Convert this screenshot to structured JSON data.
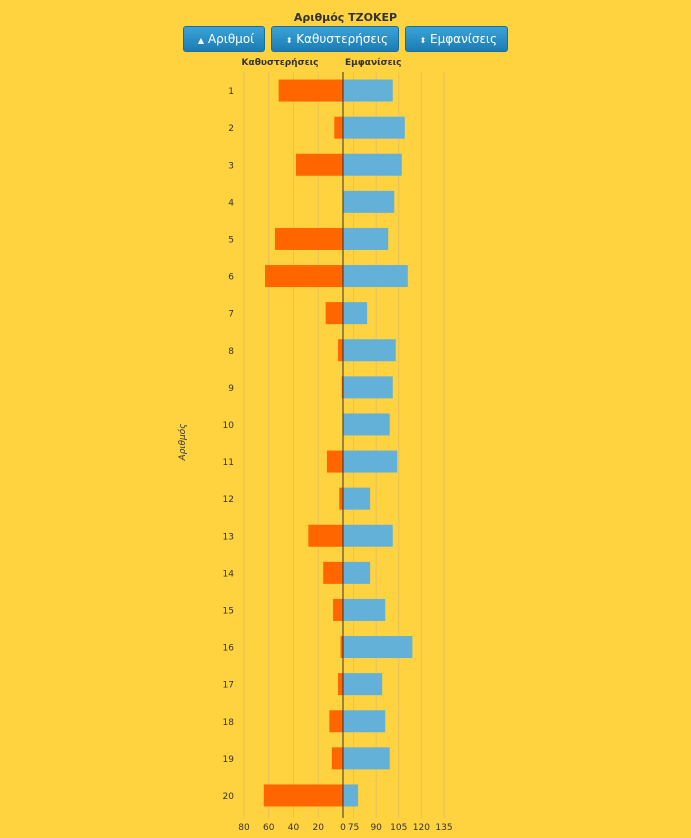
{
  "title": "Αριθμός ΤΖΟΚΕΡ",
  "buttons": [
    {
      "label": "Αριθμοί",
      "icon": "sort-up-icon",
      "glyph": "▲"
    },
    {
      "label": "Καθυστερήσεις",
      "icon": "sort-updown-icon",
      "glyph": "⬍"
    },
    {
      "label": "Εμφανίσεις",
      "icon": "sort-updown-icon",
      "glyph": "⬍"
    }
  ],
  "chart_data": {
    "type": "bar",
    "orientation": "horizontal-butterfly",
    "ylabel": "Αριθμός",
    "categories": [
      "1",
      "2",
      "3",
      "4",
      "5",
      "6",
      "7",
      "8",
      "9",
      "10",
      "11",
      "12",
      "13",
      "14",
      "15",
      "16",
      "17",
      "18",
      "19",
      "20"
    ],
    "series": [
      {
        "name": "Καθυστερήσεις",
        "color": "#ff6600",
        "values": [
          52,
          7,
          38,
          0,
          55,
          63,
          14,
          4,
          1,
          0,
          13,
          3,
          28,
          16,
          8,
          2,
          4,
          11,
          9,
          64
        ]
      },
      {
        "name": "Εμφανίσεις",
        "color": "#63b1d9",
        "values": [
          101,
          109,
          107,
          102,
          98,
          111,
          84,
          103,
          101,
          99,
          104,
          86,
          101,
          86,
          96,
          114,
          94,
          96,
          99,
          78
        ]
      }
    ],
    "left_axis": {
      "ticks": [
        "80",
        "60",
        "40",
        "20",
        "0"
      ],
      "range": [
        80,
        0
      ]
    },
    "right_axis": {
      "ticks": [
        "75",
        "90",
        "105",
        "120",
        "135"
      ],
      "range": [
        68,
        135
      ]
    },
    "grid": true
  }
}
